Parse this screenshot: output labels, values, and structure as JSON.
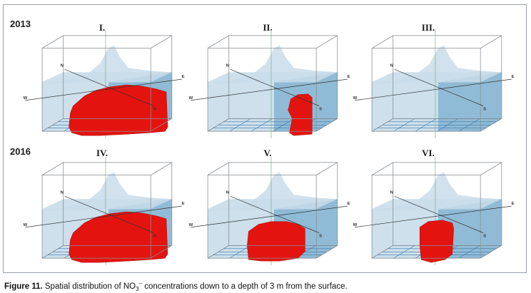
{
  "rows": [
    {
      "year": "2013",
      "panels": [
        {
          "label": "I.",
          "plume": "wide"
        },
        {
          "label": "II.",
          "plume": "small-east"
        },
        {
          "label": "III.",
          "plume": "none"
        }
      ]
    },
    {
      "year": "2016",
      "panels": [
        {
          "label": "IV.",
          "plume": "wide"
        },
        {
          "label": "V.",
          "plume": "medium"
        },
        {
          "label": "VI.",
          "plume": "narrow"
        }
      ]
    }
  ],
  "compass": {
    "north": "N",
    "east": "E",
    "west": "W",
    "south": "S"
  },
  "caption": {
    "figure_label": "Figure 11.",
    "text_before": " Spatial distribution of NO",
    "subscript": "3",
    "superscript": "–",
    "text_after": " concentrations down to a depth of 3 m from the surface."
  },
  "colors": {
    "plume": "#e3140f",
    "water": "#bcd6e6",
    "water_dark": "#5f9cc4",
    "terrain": "#c9dcea",
    "box_edge": "#8a8f94"
  }
}
